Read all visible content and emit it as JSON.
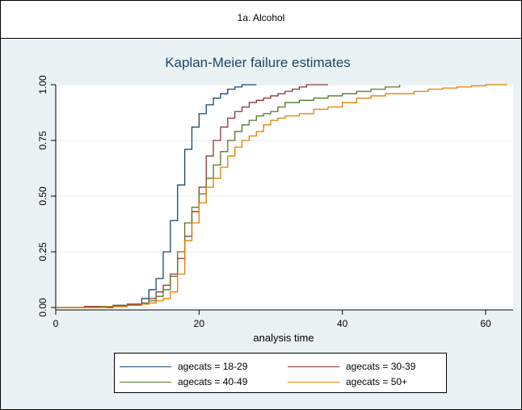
{
  "header": {
    "title": "1a. Alcohol"
  },
  "chart_data": {
    "type": "line",
    "step": true,
    "title": "Kaplan-Meier failure estimates",
    "xlabel": "analysis time",
    "ylabel": "",
    "xlim": [
      0,
      64
    ],
    "ylim": [
      0,
      1
    ],
    "xticks": [
      0,
      20,
      40,
      60
    ],
    "yticks": [
      0,
      0.25,
      0.5,
      0.75,
      1
    ],
    "ytick_labels": [
      "0.00",
      "0.25",
      "0.50",
      "0.75",
      "1.00"
    ],
    "grid": true,
    "legend_position": "bottom",
    "series": [
      {
        "name": "agecats = 18-29",
        "color": "#1a476f",
        "x": [
          0,
          8,
          10,
          12,
          13,
          14,
          15,
          16,
          17,
          18,
          19,
          20,
          21,
          22,
          23,
          24,
          25,
          26,
          28
        ],
        "y": [
          0,
          0.01,
          0.015,
          0.04,
          0.08,
          0.13,
          0.25,
          0.39,
          0.55,
          0.71,
          0.81,
          0.87,
          0.91,
          0.94,
          0.96,
          0.98,
          0.99,
          1.0,
          1.0
        ]
      },
      {
        "name": "agecats = 30-39",
        "color": "#90353b",
        "x": [
          0,
          4,
          10,
          12,
          13,
          14,
          15,
          16,
          17,
          18,
          19,
          20,
          21,
          22,
          23,
          24,
          25,
          26,
          27,
          28,
          29,
          30,
          31,
          32,
          33,
          34,
          35,
          38
        ],
        "y": [
          0,
          0.005,
          0.015,
          0.02,
          0.04,
          0.07,
          0.1,
          0.15,
          0.22,
          0.32,
          0.43,
          0.54,
          0.68,
          0.75,
          0.81,
          0.85,
          0.88,
          0.9,
          0.92,
          0.93,
          0.94,
          0.95,
          0.96,
          0.97,
          0.98,
          0.99,
          1.0,
          1.0
        ]
      },
      {
        "name": "agecats = 40-49",
        "color": "#55752f",
        "x": [
          0,
          6,
          10,
          12,
          13,
          14,
          15,
          16,
          17,
          18,
          19,
          20,
          21,
          22,
          23,
          24,
          25,
          26,
          27,
          28,
          29,
          30,
          31,
          32,
          34,
          36,
          38,
          40,
          42,
          44,
          46,
          48
        ],
        "y": [
          0,
          0.005,
          0.01,
          0.02,
          0.03,
          0.05,
          0.08,
          0.14,
          0.25,
          0.38,
          0.45,
          0.51,
          0.58,
          0.64,
          0.7,
          0.75,
          0.79,
          0.82,
          0.84,
          0.86,
          0.87,
          0.88,
          0.9,
          0.92,
          0.93,
          0.94,
          0.95,
          0.96,
          0.97,
          0.98,
          0.99,
          1.0
        ]
      },
      {
        "name": "agecats = 50+",
        "color": "#e37e00",
        "x": [
          0,
          7,
          10,
          12,
          13,
          14,
          15,
          16,
          17,
          18,
          19,
          20,
          21,
          22,
          23,
          24,
          25,
          26,
          27,
          28,
          29,
          30,
          31,
          32,
          34,
          36,
          38,
          40,
          42,
          44,
          46,
          48,
          50,
          52,
          54,
          56,
          58,
          60,
          63
        ],
        "y": [
          0,
          0.005,
          0.01,
          0.015,
          0.02,
          0.03,
          0.04,
          0.07,
          0.15,
          0.3,
          0.38,
          0.47,
          0.54,
          0.58,
          0.63,
          0.68,
          0.72,
          0.75,
          0.77,
          0.79,
          0.82,
          0.84,
          0.85,
          0.86,
          0.87,
          0.89,
          0.9,
          0.92,
          0.94,
          0.95,
          0.96,
          0.96,
          0.97,
          0.98,
          0.985,
          0.99,
          0.995,
          1.0,
          1.0
        ]
      }
    ]
  }
}
